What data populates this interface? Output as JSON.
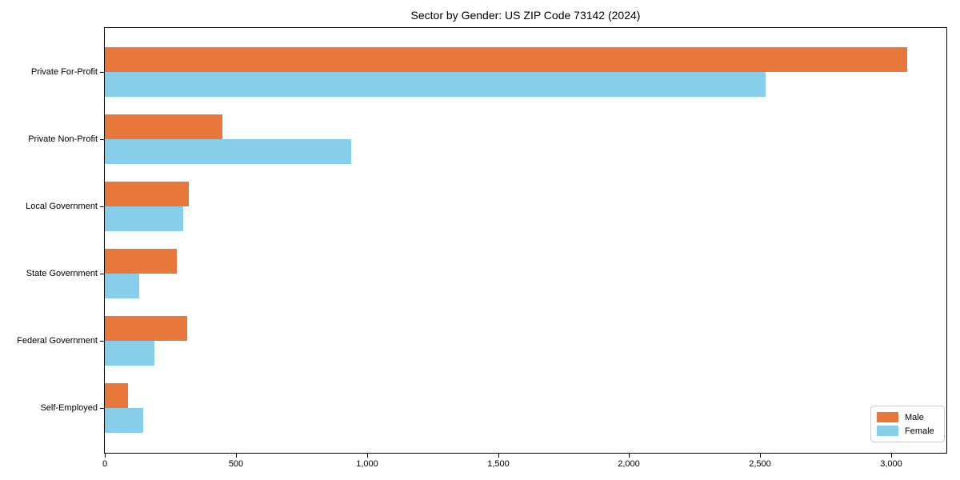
{
  "chart_data": {
    "type": "bar",
    "orientation": "horizontal",
    "title": "Sector by Gender: US ZIP Code 73142 (2024)",
    "categories": [
      "Private For-Profit",
      "Private Non-Profit",
      "Local Government",
      "State Government",
      "Federal Government",
      "Self-Employed"
    ],
    "series": [
      {
        "name": "Male",
        "color": "#E8773C",
        "values": [
          3060,
          450,
          320,
          275,
          315,
          90
        ]
      },
      {
        "name": "Female",
        "color": "#87CEEB",
        "values": [
          2520,
          940,
          300,
          130,
          190,
          145
        ]
      }
    ],
    "xlabel": "",
    "ylabel": "",
    "xlim": [
      0,
      3210
    ],
    "x_ticks": [
      0,
      500,
      1000,
      1500,
      2000,
      2500,
      3000
    ],
    "x_tick_labels": [
      "0",
      "500",
      "1,000",
      "1,500",
      "2,000",
      "2,500",
      "3,000"
    ],
    "grid": false,
    "legend_position": "lower right",
    "axis_color": "#000000",
    "background_color": "#ffffff"
  }
}
